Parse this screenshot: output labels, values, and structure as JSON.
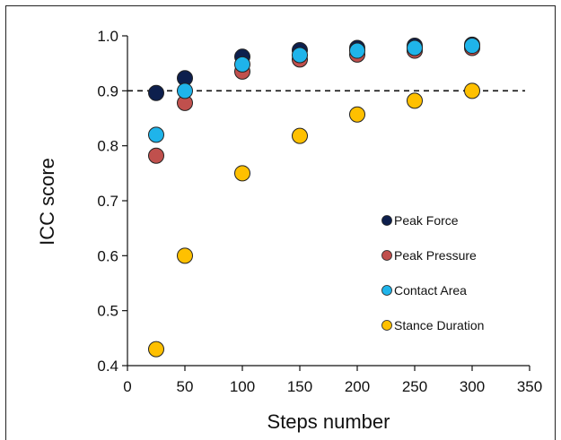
{
  "chart_data": {
    "type": "scatter",
    "xlabel": "Steps number",
    "ylabel": "ICC score",
    "xlim": [
      0,
      350
    ],
    "ylim": [
      0.4,
      1.0
    ],
    "xticks": [
      0,
      50,
      100,
      150,
      200,
      250,
      300,
      350
    ],
    "yticks": [
      "0.4",
      "0.5",
      "0.6",
      "0.7",
      "0.8",
      "0.9",
      "1.0"
    ],
    "grid": false,
    "legend_position": "right",
    "reference_line": {
      "y": 0.9,
      "style": "dashed"
    },
    "series": [
      {
        "name": "Peak Force",
        "color": "#0d1f4d",
        "points": [
          [
            25,
            0.896
          ],
          [
            50,
            0.923
          ],
          [
            100,
            0.962
          ],
          [
            150,
            0.974
          ],
          [
            200,
            0.978
          ],
          [
            250,
            0.982
          ],
          [
            300,
            0.984
          ]
        ]
      },
      {
        "name": "Peak Pressure",
        "color": "#c0504d",
        "points": [
          [
            25,
            0.782
          ],
          [
            50,
            0.878
          ],
          [
            100,
            0.935
          ],
          [
            150,
            0.957
          ],
          [
            200,
            0.966
          ],
          [
            250,
            0.973
          ],
          [
            300,
            0.978
          ]
        ]
      },
      {
        "name": "Contact Area",
        "color": "#1fb4ea",
        "points": [
          [
            25,
            0.82
          ],
          [
            50,
            0.9
          ],
          [
            100,
            0.948
          ],
          [
            150,
            0.965
          ],
          [
            200,
            0.973
          ],
          [
            250,
            0.978
          ],
          [
            300,
            0.982
          ]
        ]
      },
      {
        "name": "Stance Duration",
        "color": "#ffc000",
        "points": [
          [
            25,
            0.43
          ],
          [
            50,
            0.6
          ],
          [
            100,
            0.75
          ],
          [
            150,
            0.818
          ],
          [
            200,
            0.857
          ],
          [
            250,
            0.882
          ],
          [
            300,
            0.9
          ]
        ]
      }
    ]
  }
}
